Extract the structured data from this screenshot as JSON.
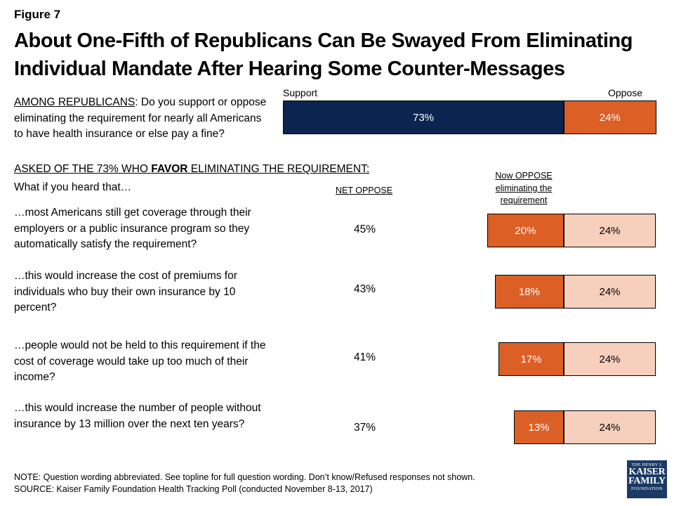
{
  "figure_label": "Figure 7",
  "title_line1": "About One-Fifth of Republicans Can Be Swayed From Eliminating",
  "title_line2": "Individual Mandate After Hearing Some Counter-Messages",
  "main_question": {
    "prefix": "AMONG REPUBLICANS",
    "text": ": Do you support or oppose eliminating the requirement for nearly all Americans to have health insurance or else pay a fine?"
  },
  "asked_heading": {
    "before": "ASKED OF THE 73% WHO ",
    "bold": "FAVOR",
    "after": " ELIMINATING THE REQUIREMENT:"
  },
  "what_if": "What if you heard that…",
  "net_oppose_header": "NET OPPOSE",
  "now_oppose_header": "Now OPPOSE eliminating the requirement",
  "note": "NOTE: Question wording abbreviated. See topline for full question wording. Don’t know/Refused responses not shown.",
  "source": "SOURCE: Kaiser Family Foundation Health Tracking Poll (conducted November 8-13, 2017)",
  "logo": {
    "line1": "THE HENRY J.",
    "line2": "KAISER",
    "line3": "FAMILY",
    "line4": "FOUNDATION"
  },
  "chart_data": [
    {
      "type": "bar",
      "orientation": "horizontal",
      "stacked": true,
      "categories": [
        "main"
      ],
      "series": [
        {
          "name": "Support",
          "values": [
            73
          ],
          "labels": [
            "73%"
          ],
          "color": "#0b2550"
        },
        {
          "name": "Oppose",
          "values": [
            24
          ],
          "labels": [
            "24%"
          ],
          "color": "#dc5f26"
        }
      ]
    },
    {
      "type": "bar",
      "orientation": "horizontal",
      "stacked": true,
      "categories": [
        "…most Americans still get coverage through their employers or a public insurance program so they automatically satisfy the requirement?",
        "…this would increase the cost of premiums for individuals who buy their own insurance by 10 percent?",
        "…people would not be held to this requirement if the cost of coverage would take up too much of their income?",
        "…this would increase the number of people without insurance by 13 million over the next ten years?"
      ],
      "net_oppose": [
        "45%",
        "43%",
        "41%",
        "37%"
      ],
      "series": [
        {
          "values": [
            20,
            18,
            17,
            13
          ],
          "labels": [
            "20%",
            "18%",
            "17%",
            "13%"
          ],
          "color": "#dc5f26"
        },
        {
          "values": [
            24,
            24,
            24,
            24
          ],
          "labels": [
            "24%",
            "24%",
            "24%",
            "24%"
          ],
          "color": "#f7d0bd"
        }
      ]
    }
  ]
}
